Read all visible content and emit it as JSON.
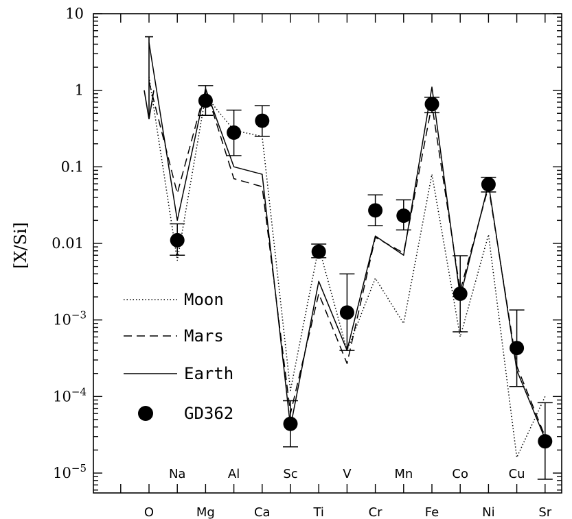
{
  "chart_data": {
    "type": "line",
    "ylabel": "[X/Si]",
    "yscale": "log",
    "ylim": [
      5.5e-06,
      10
    ],
    "y_ticks": [
      {
        "value": 10,
        "mantissa": "10",
        "exp": ""
      },
      {
        "value": 1,
        "mantissa": "1",
        "exp": ""
      },
      {
        "value": 0.1,
        "mantissa": "0.1",
        "exp": ""
      },
      {
        "value": 0.01,
        "mantissa": "0.01",
        "exp": ""
      },
      {
        "value": 0.001,
        "mantissa": "10",
        "exp": "−3"
      },
      {
        "value": 0.0001,
        "mantissa": "10",
        "exp": "−4"
      },
      {
        "value": 1e-05,
        "mantissa": "10",
        "exp": "−5"
      }
    ],
    "categories": [
      "O",
      "Na",
      "Mg",
      "Al",
      "Ca",
      "Sc",
      "Ti",
      "V",
      "Cr",
      "Mn",
      "Fe",
      "Co",
      "Ni",
      "Cu",
      "Sr"
    ],
    "label_rows": [
      "bottom",
      "top",
      "bottom",
      "top",
      "bottom",
      "top",
      "bottom",
      "top",
      "bottom",
      "top",
      "bottom",
      "top",
      "bottom",
      "top",
      "bottom"
    ],
    "legend_position": "lower-left",
    "series": [
      {
        "name": "Moon",
        "style": "dotted",
        "values": [
          1.5,
          0.006,
          0.85,
          0.3,
          0.25,
          0.00012,
          0.009,
          0.0004,
          0.0035,
          0.0009,
          0.08,
          0.0006,
          0.013,
          1.6e-05,
          0.0001
        ]
      },
      {
        "name": "Mars",
        "style": "dashed",
        "values": [
          1.3,
          0.045,
          1.05,
          0.07,
          0.055,
          6e-05,
          0.0022,
          0.00027,
          0.012,
          0.0075,
          0.65,
          0.0024,
          0.055,
          0.00025,
          3e-05
        ]
      },
      {
        "name": "Earth",
        "style": "solid",
        "values": [
          4.2,
          0.02,
          1.05,
          0.1,
          0.08,
          4e-05,
          0.0032,
          0.0004,
          0.0125,
          0.007,
          1.1,
          0.002,
          0.06,
          0.00022,
          2.8e-05
        ]
      },
      {
        "name": "GD362",
        "style": "points",
        "values": [
          null,
          0.011,
          0.73,
          0.28,
          0.4,
          4.4e-05,
          0.0078,
          0.00125,
          0.027,
          0.023,
          0.66,
          0.0022,
          0.059,
          0.00043,
          2.6e-05
        ],
        "err_low": [
          null,
          0.007,
          0.47,
          0.14,
          0.25,
          2.2e-05,
          0.0065,
          0.0004,
          0.017,
          0.015,
          0.51,
          0.0007,
          0.047,
          0.000135,
          8.3e-06
        ],
        "err_high": [
          null,
          0.018,
          1.15,
          0.55,
          0.63,
          8.8e-05,
          0.0098,
          0.004,
          0.043,
          0.037,
          0.81,
          0.0069,
          0.073,
          0.00135,
          8.3e-05
        ]
      }
    ],
    "upper_limit": {
      "category": "O",
      "value": 5
    }
  }
}
